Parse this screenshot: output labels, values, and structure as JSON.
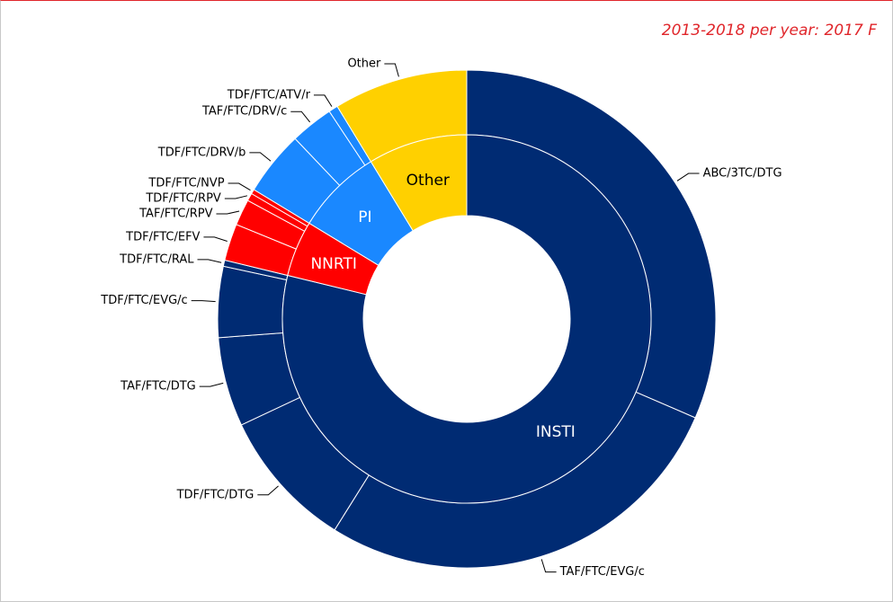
{
  "chart_data": {
    "type": "sunburst",
    "title": "2013-2018 per year: 2017  F",
    "groups": [
      {
        "name": "INSTI",
        "color": "#002b73",
        "label_color": "#ffffff",
        "children": [
          {
            "name": "ABC/3TC/DTG",
            "value": 31.5
          },
          {
            "name": "TAF/FTC/EVG/c",
            "value": 27.4
          },
          {
            "name": "TDF/FTC/DTG",
            "value": 9.1
          },
          {
            "name": "TAF/FTC/DTG",
            "value": 5.8
          },
          {
            "name": "TDF/FTC/EVG/c",
            "value": 4.6
          },
          {
            "name": "TDF/FTC/RAL",
            "value": 0.4
          }
        ]
      },
      {
        "name": "NNRTI",
        "color": "#ff0000",
        "label_color": "#ffffff",
        "children": [
          {
            "name": "TDF/FTC/EFV",
            "value": 2.4
          },
          {
            "name": "TAF/FTC/RPV",
            "value": 1.7
          },
          {
            "name": "TDF/FTC/RPV",
            "value": 0.5
          },
          {
            "name": "TDF/FTC/NVP",
            "value": 0.3
          }
        ]
      },
      {
        "name": "PI",
        "color": "#1a88ff",
        "label_color": "#ffffff",
        "children": [
          {
            "name": "TDF/FTC/DRV/b",
            "value": 4.2
          },
          {
            "name": "TAF/FTC/DRV/c",
            "value": 2.8
          },
          {
            "name": "TDF/FTC/ATV/r",
            "value": 0.6
          }
        ]
      },
      {
        "name": "Other",
        "color": "#ffd000",
        "label_color": "#000000",
        "children": [
          {
            "name": "Other",
            "value": 8.7
          }
        ]
      }
    ]
  }
}
